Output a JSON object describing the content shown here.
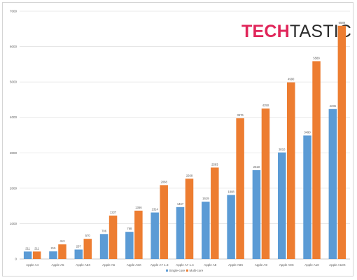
{
  "logo": {
    "part1": "TECH",
    "part2": "TASTIC"
  },
  "chart_data": {
    "type": "bar",
    "title": "",
    "xlabel": "",
    "ylabel": "",
    "ylim": [
      0,
      7000
    ],
    "yticks": [
      0,
      1000,
      2000,
      3000,
      4000,
      5000,
      6000,
      7000
    ],
    "grid": true,
    "legend_position": "bottom",
    "categories": [
      "Apple A4",
      "Apple A5",
      "Apple A5X",
      "Apple A6",
      "Apple A6X",
      "Apple A7 1.3",
      "Apple A7 1.4",
      "Apple A8",
      "Apple A8X",
      "Apple A9",
      "Apple A9X",
      "Apple A10",
      "Apple A10X"
    ],
    "series": [
      {
        "name": "Single-core",
        "color": "#5b9bd5",
        "values": [
          211,
          215,
          267,
          706,
          768,
          1314,
          1467,
          1619,
          1808,
          2510,
          3010,
          3490,
          4236
        ]
      },
      {
        "name": "Multi-core",
        "color": "#ed7d31",
        "values": [
          211,
          413,
          570,
          1227,
          1366,
          2088,
          2268,
          2583,
          3976,
          4250,
          4990,
          5588,
          6589
        ]
      }
    ]
  }
}
